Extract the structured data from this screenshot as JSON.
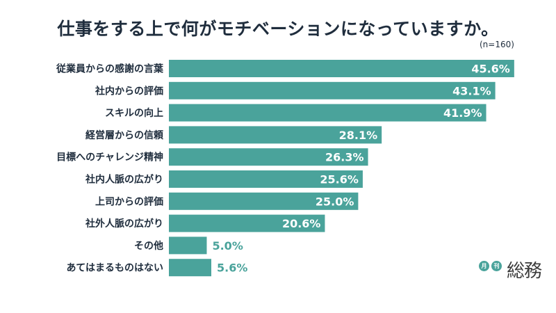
{
  "colors": {
    "bar": "#4aa39b",
    "value_inside": "#ffffff",
    "value_outside": "#4aa39b",
    "text": "#1f2d3d"
  },
  "chart_data": {
    "type": "bar",
    "orientation": "horizontal",
    "title": "仕事をする上で何がモチベーションになっていますか。",
    "note": "(n=160)",
    "unit": "%",
    "xlim": [
      0,
      48
    ],
    "categories": [
      "従業員からの感謝の言葉",
      "社内からの評価",
      "スキルの向上",
      "経営層からの信頼",
      "目標へのチャレンジ精神",
      "社内人脈の広がり",
      "上司からの評価",
      "社外人脈の広がり",
      "その他",
      "あてはまるものはない"
    ],
    "values": [
      45.6,
      43.1,
      41.9,
      28.1,
      26.3,
      25.6,
      25.0,
      20.6,
      5.0,
      5.6
    ],
    "value_labels": [
      "45.6%",
      "43.1%",
      "41.9%",
      "28.1%",
      "26.3%",
      "25.6%",
      "25.0%",
      "20.6%",
      "5.0%",
      "5.6%"
    ]
  },
  "logo": {
    "badge1": "月",
    "badge2": "刊",
    "name": "総務"
  }
}
